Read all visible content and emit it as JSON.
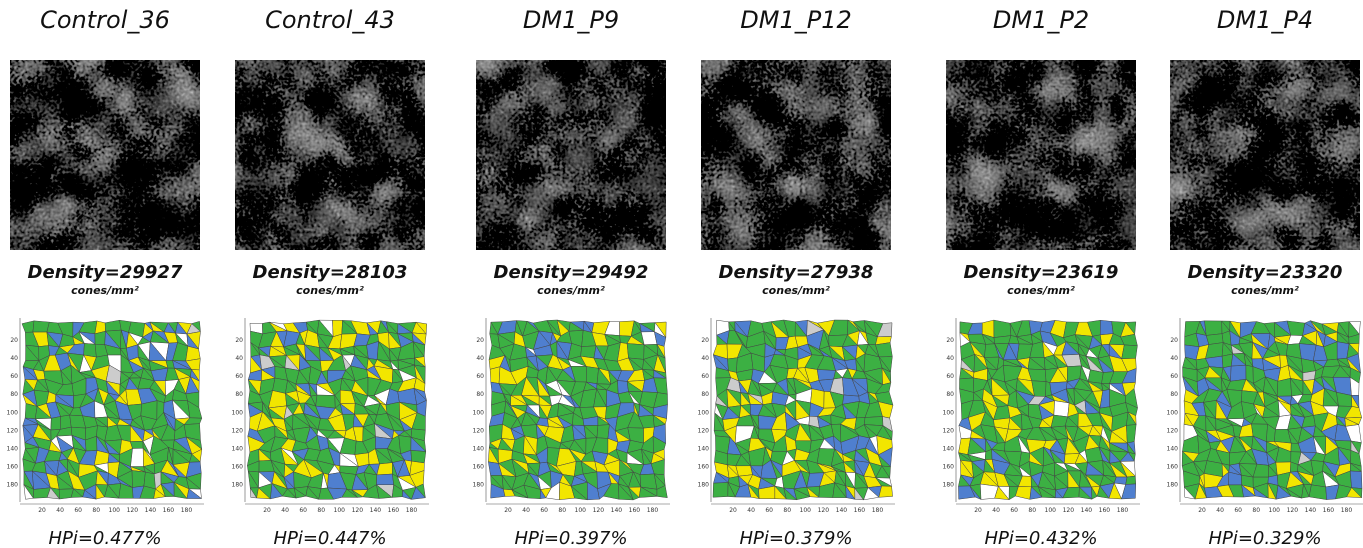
{
  "panels": [
    {
      "title": "Control_36",
      "density": "Density=29927",
      "units": "cones/mm²",
      "hpi": "HPi=0.477%"
    },
    {
      "title": "Control_43",
      "density": "Density=28103",
      "units": "cones/mm²",
      "hpi": "HPi=0.447%"
    },
    {
      "title": "DM1_P9",
      "density": "Density=29492",
      "units": "cones/mm²",
      "hpi": "HPi=0.397%"
    },
    {
      "title": "DM1_P12",
      "density": "Density=27938",
      "units": "cones/mm²",
      "hpi": "HPi=0.379%"
    },
    {
      "title": "DM1_P2",
      "density": "Density=23619",
      "units": "cones/mm²",
      "hpi": "HPi=0.432%"
    },
    {
      "title": "DM1_P4",
      "density": "Density=23320",
      "units": "cones/mm²",
      "hpi": "HPi=0.329%"
    }
  ],
  "axis_ticks": [
    20,
    40,
    60,
    80,
    100,
    120,
    140,
    160,
    180
  ]
}
